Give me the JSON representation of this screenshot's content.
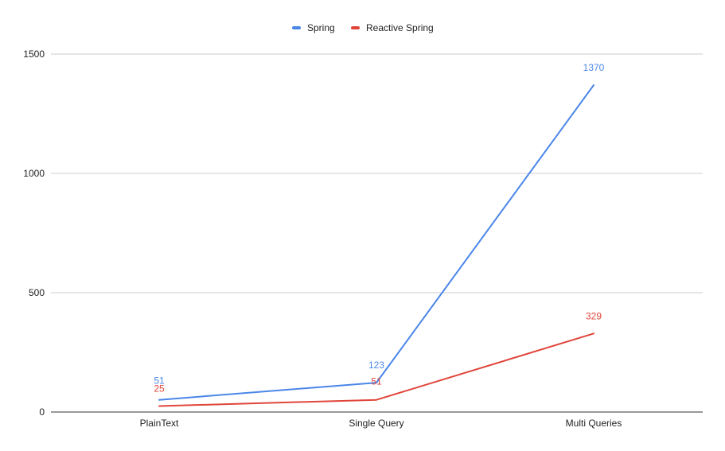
{
  "chart_data": {
    "type": "line",
    "title": "",
    "xlabel": "",
    "ylabel": "",
    "categories": [
      "PlainText",
      "Single Query",
      "Multi Queries"
    ],
    "series": [
      {
        "name": "Spring",
        "values": [
          51,
          123,
          1370
        ],
        "color": "#4a86e8"
      },
      {
        "name": "Reactive Spring",
        "values": [
          25,
          51,
          329
        ],
        "color": "#e0453a"
      }
    ],
    "ylim": [
      0,
      1500
    ],
    "yticks": [
      0,
      500,
      1000,
      1500
    ],
    "grid": true,
    "legend": "top-center",
    "data_labels": true
  }
}
